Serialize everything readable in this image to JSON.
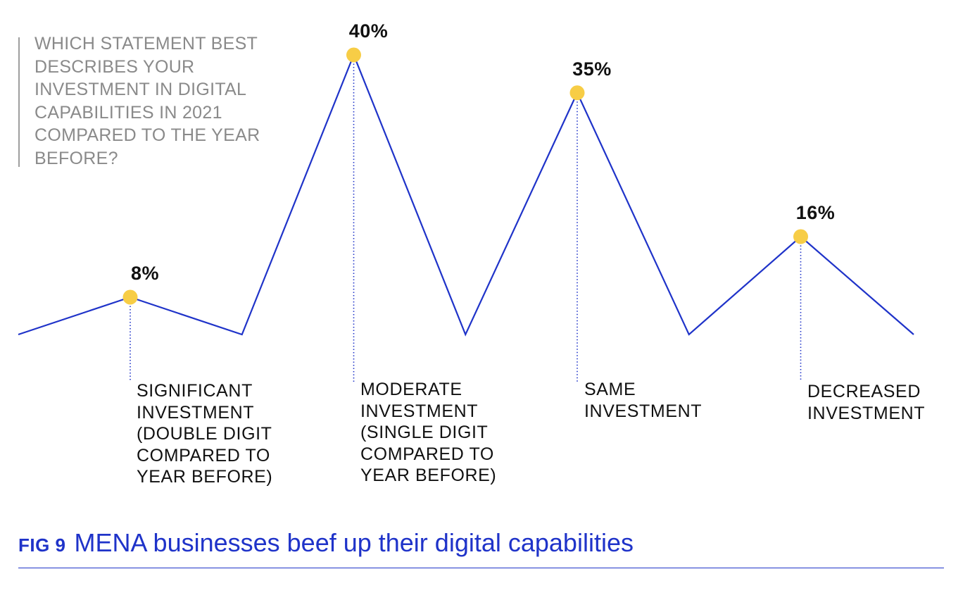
{
  "question": "WHICH STATEMENT BEST DESCRIBES YOUR INVESTMENT IN DIGITAL CAPABILITIES IN 2021 COMPARED TO THE YEAR BEFORE?",
  "figure": {
    "tag": "FIG 9",
    "title": "MENA businesses beef up their digital capabilities"
  },
  "colors": {
    "line": "#1f33c9",
    "marker": "#f7cd46",
    "text": "#111111",
    "question": "#8a8a8a"
  },
  "chart_data": {
    "type": "line",
    "title": "",
    "xlabel": "",
    "ylabel": "",
    "ylim": [
      0,
      45
    ],
    "grid": false,
    "legend": "none",
    "categories": [
      "SIGNIFICANT INVESTMENT\n (DOUBLE DIGIT COMPARED TO YEAR BEFORE)",
      "MODERATE INVESTMENT\n (SINGLE DIGIT COMPARED TO YEAR BEFORE)",
      "SAME INVESTMENT",
      "DECREASED INVESTMENT"
    ],
    "values": [
      8,
      40,
      35,
      16
    ],
    "data_labels": [
      "8%",
      "40%",
      "35%",
      "16%"
    ]
  }
}
